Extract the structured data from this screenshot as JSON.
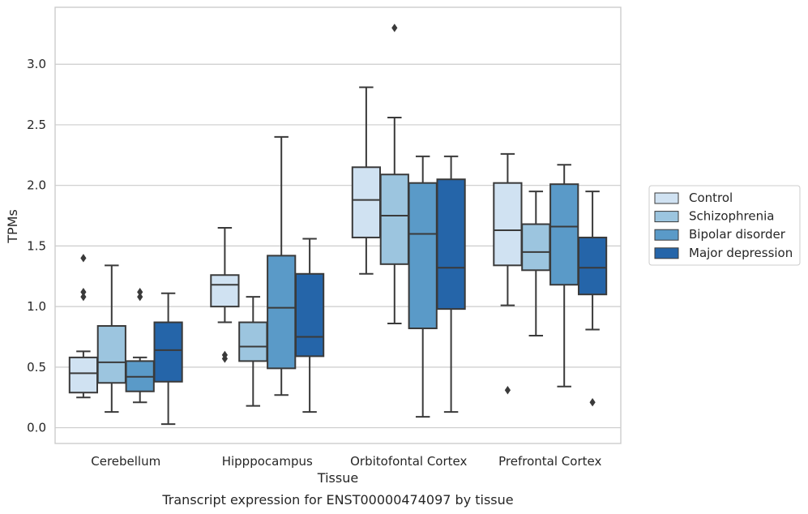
{
  "caption": "Transcript expression for ENST00000474097 by tissue",
  "chart_data": {
    "type": "box",
    "xlabel": "Tissue",
    "ylabel": "TPMs",
    "ylim": [
      -0.13,
      3.47
    ],
    "yticks": [
      "0.0",
      "0.5",
      "1.0",
      "1.5",
      "2.0",
      "2.5",
      "3.0"
    ],
    "grid": "horizontal",
    "legend_placement": "right",
    "categories": [
      "Cerebellum",
      "Hipppocampus",
      "Orbitofontal Cortex",
      "Prefrontal Cortex"
    ],
    "series": [
      {
        "name": "Control",
        "color": "#d0e2f2",
        "boxes": [
          {
            "whislo": 0.25,
            "q1": 0.29,
            "med": 0.45,
            "q3": 0.58,
            "whishi": 0.63,
            "fliers": []
          },
          {
            "whislo": 0.87,
            "q1": 1.0,
            "med": 1.18,
            "q3": 1.26,
            "whishi": 1.65,
            "fliers": [
              0.57,
              0.6
            ]
          },
          {
            "whislo": 1.27,
            "q1": 1.57,
            "med": 1.88,
            "q3": 2.15,
            "whishi": 2.81,
            "fliers": []
          },
          {
            "whislo": 1.01,
            "q1": 1.34,
            "med": 1.63,
            "q3": 2.02,
            "whishi": 2.26,
            "fliers": [
              0.31
            ]
          }
        ]
      },
      {
        "name": "Schizophrenia",
        "color": "#9cc5df",
        "boxes": [
          {
            "whislo": 0.13,
            "q1": 0.37,
            "med": 0.54,
            "q3": 0.84,
            "whishi": 1.34,
            "fliers": []
          },
          {
            "whislo": 0.18,
            "q1": 0.55,
            "med": 0.67,
            "q3": 0.87,
            "whishi": 1.08,
            "fliers": []
          },
          {
            "whislo": 0.86,
            "q1": 1.35,
            "med": 1.75,
            "q3": 2.09,
            "whishi": 2.56,
            "fliers": [
              3.3
            ]
          },
          {
            "whislo": 0.76,
            "q1": 1.3,
            "med": 1.45,
            "q3": 1.68,
            "whishi": 1.95,
            "fliers": []
          }
        ]
      },
      {
        "name": "Bipolar disorder",
        "color": "#5a9ac8",
        "boxes": [
          {
            "whislo": 0.21,
            "q1": 0.3,
            "med": 0.42,
            "q3": 0.55,
            "whishi": 0.58,
            "fliers": [
              1.08,
              1.12
            ]
          },
          {
            "whislo": 0.27,
            "q1": 0.49,
            "med": 0.99,
            "q3": 1.42,
            "whishi": 2.4,
            "fliers": []
          },
          {
            "whislo": 0.09,
            "q1": 0.82,
            "med": 1.6,
            "q3": 2.02,
            "whishi": 2.24,
            "fliers": []
          },
          {
            "whislo": 0.34,
            "q1": 1.18,
            "med": 1.66,
            "q3": 2.01,
            "whishi": 2.17,
            "fliers": []
          }
        ]
      },
      {
        "name": "Major depression",
        "color": "#2565a9",
        "boxes": [
          {
            "whislo": 0.03,
            "q1": 0.38,
            "med": 0.64,
            "q3": 0.87,
            "whishi": 1.11,
            "fliers": []
          },
          {
            "whislo": 0.13,
            "q1": 0.59,
            "med": 0.75,
            "q3": 1.27,
            "whishi": 1.56,
            "fliers": []
          },
          {
            "whislo": 0.13,
            "q1": 0.98,
            "med": 1.32,
            "q3": 2.05,
            "whishi": 2.24,
            "fliers": []
          },
          {
            "whislo": 0.81,
            "q1": 1.1,
            "med": 1.32,
            "q3": 1.57,
            "whishi": 1.95,
            "fliers": [
              0.21
            ]
          }
        ]
      }
    ],
    "extra_fliers": [
      {
        "category_index": 0,
        "series_index": 0,
        "value": 1.4
      },
      {
        "category_index": 0,
        "series_index": 0,
        "value": 1.12
      },
      {
        "category_index": 0,
        "series_index": 0,
        "value": 1.08
      }
    ]
  }
}
